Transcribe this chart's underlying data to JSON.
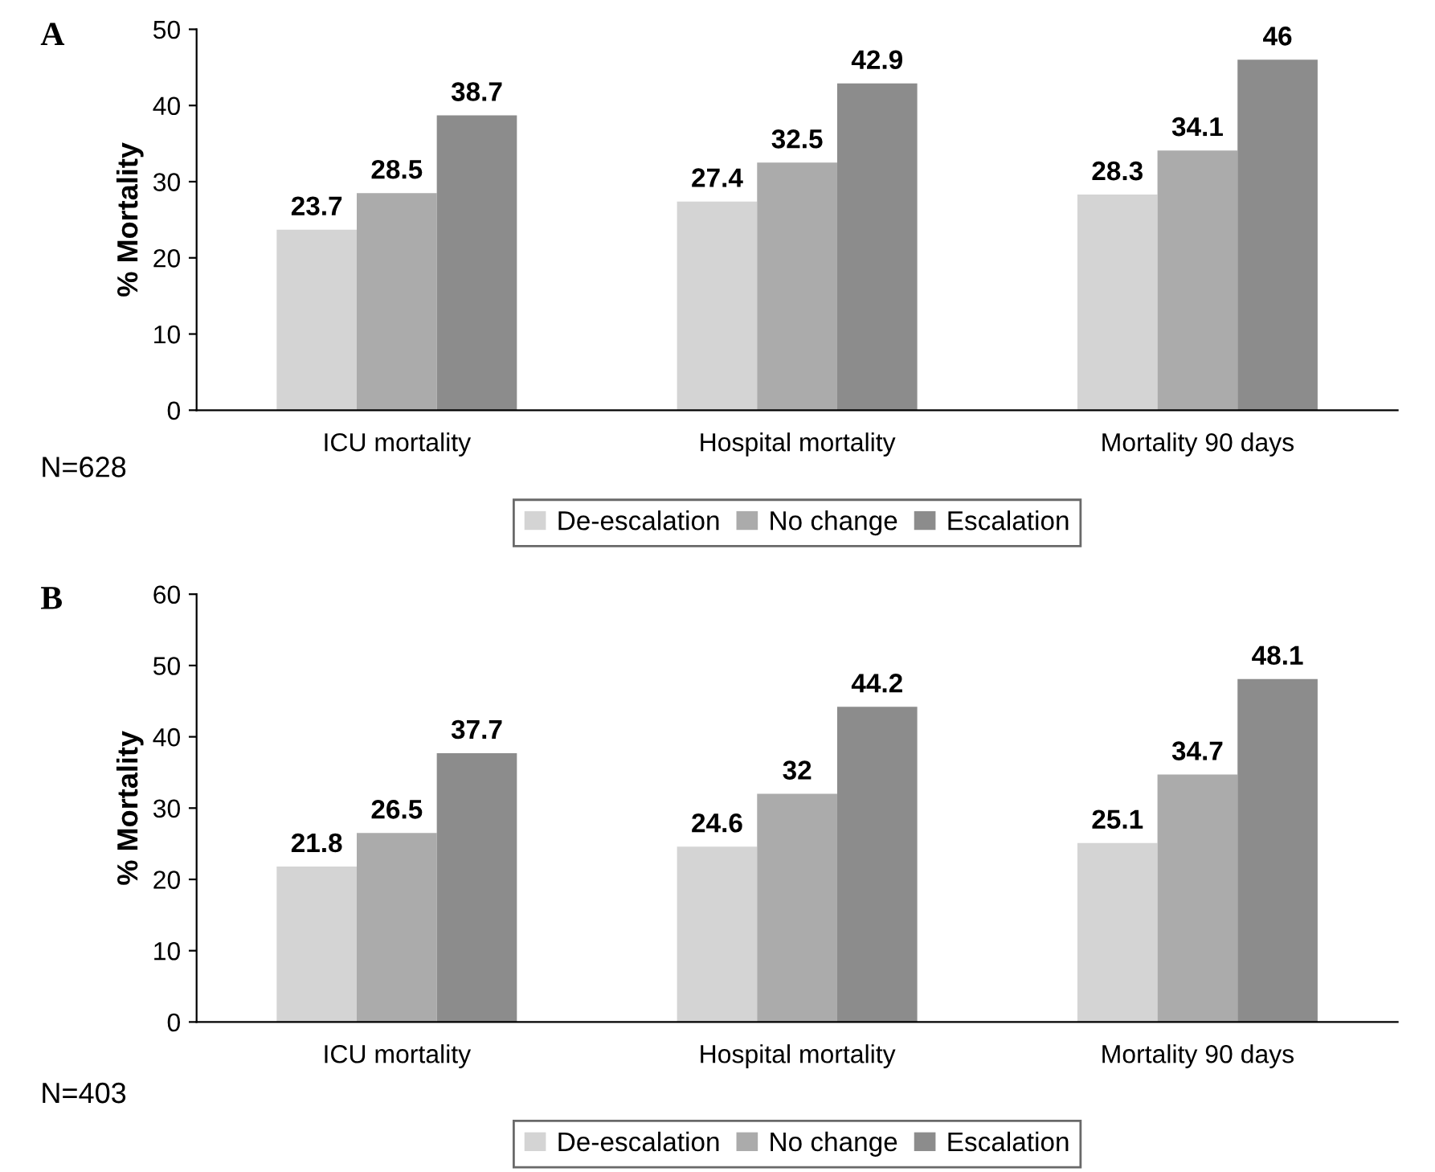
{
  "chart_data": [
    {
      "type": "bar",
      "title": "A",
      "ylabel": "% Mortality",
      "categories": [
        "ICU mortality",
        "Hospital mortality",
        "Mortality 90 days"
      ],
      "series": [
        {
          "name": "De-escalation",
          "color": "#d4d4d4",
          "values": [
            23.7,
            27.4,
            28.3
          ]
        },
        {
          "name": "No change",
          "color": "#ababab",
          "values": [
            28.5,
            32.5,
            34.1
          ]
        },
        {
          "name": "Escalation",
          "color": "#8c8c8c",
          "values": [
            38.7,
            42.9,
            46
          ]
        }
      ],
      "ylim": [
        0,
        50
      ],
      "yticks": [
        0,
        10,
        20,
        30,
        40,
        50
      ],
      "data_labels": true,
      "grid": false,
      "legend": "bottom",
      "annotations": [
        "N=628"
      ]
    },
    {
      "type": "bar",
      "title": "B",
      "ylabel": "% Mortality",
      "categories": [
        "ICU mortality",
        "Hospital mortality",
        "Mortality 90 days"
      ],
      "series": [
        {
          "name": "De-escalation",
          "color": "#d4d4d4",
          "values": [
            21.8,
            24.6,
            25.1
          ]
        },
        {
          "name": "No change",
          "color": "#ababab",
          "values": [
            26.5,
            32,
            34.7
          ]
        },
        {
          "name": "Escalation",
          "color": "#8c8c8c",
          "values": [
            37.7,
            44.2,
            48.1
          ]
        }
      ],
      "ylim": [
        0,
        60
      ],
      "yticks": [
        0,
        10,
        20,
        30,
        40,
        50,
        60
      ],
      "data_labels": true,
      "grid": false,
      "legend": "bottom",
      "annotations": [
        "N=403"
      ]
    }
  ]
}
